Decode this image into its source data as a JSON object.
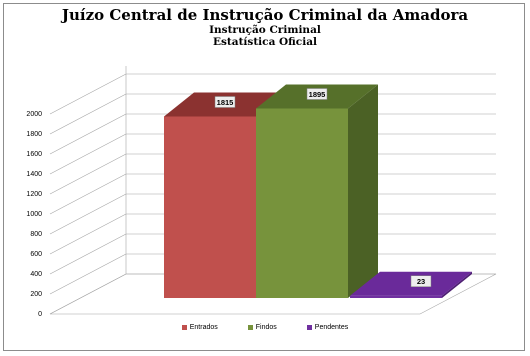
{
  "chart_data": {
    "type": "bar",
    "title": "Juízo Central de Instrução Criminal da Amadora",
    "subtitles": [
      "Instrução Criminal",
      "Estatística Oficial"
    ],
    "categories": [
      "Entrados",
      "Findos",
      "Pendentes"
    ],
    "values": [
      1815,
      1895,
      23
    ],
    "ylim": [
      0,
      2000
    ],
    "yticks": [
      "0",
      "200",
      "400",
      "600",
      "800",
      "1000",
      "1200",
      "1400",
      "1600",
      "1800",
      "2000"
    ],
    "grid": true,
    "three_d": true,
    "legend_position": "bottom",
    "colors": {
      "Entrados": {
        "front": "#c0504d",
        "top": "#8b3230",
        "side": "#7a2b29"
      },
      "Findos": {
        "front": "#77933c",
        "top": "#56702a",
        "side": "#4b6125"
      },
      "Pendentes": {
        "front": "#7030a0",
        "top": "#6a2a9a",
        "side": "#4e1f73"
      }
    }
  }
}
